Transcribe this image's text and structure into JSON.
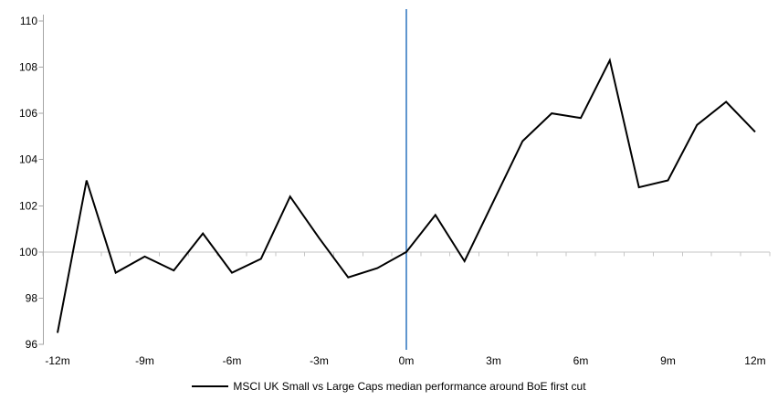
{
  "chart_data": {
    "type": "line",
    "x": [
      -12,
      -11,
      -10,
      -9,
      -8,
      -7,
      -6,
      -5,
      -4,
      -3,
      -2,
      -1,
      0,
      1,
      2,
      3,
      4,
      5,
      6,
      7,
      8,
      9,
      10,
      11,
      12
    ],
    "series": [
      {
        "name": "MSCI UK Small vs Large Caps median performance around BoE first cut",
        "values": [
          96.5,
          103.1,
          99.1,
          99.8,
          99.2,
          100.8,
          99.1,
          99.7,
          102.4,
          100.6,
          98.9,
          99.3,
          100.0,
          101.6,
          99.6,
          102.2,
          104.8,
          106.0,
          105.8,
          108.3,
          102.8,
          103.1,
          105.5,
          106.5,
          105.2
        ]
      }
    ],
    "xtick_months": [
      -12,
      -9,
      -6,
      -3,
      0,
      3,
      6,
      9,
      12
    ],
    "xtick_labels": [
      "-12m",
      "-9m",
      "-6m",
      "-3m",
      "0m",
      "3m",
      "6m",
      "9m",
      "12m"
    ],
    "yticks": [
      96,
      98,
      100,
      102,
      104,
      106,
      108,
      110
    ],
    "ylim": [
      96,
      110
    ],
    "xlim": [
      -12.5,
      12.5
    ],
    "baseline_value": 100,
    "event_line_month": 0,
    "grid": "baseline-only",
    "legend_position": "bottom",
    "colors": {
      "series": "#000000",
      "event_line": "#4e8ac8",
      "axis": "#a6a6a6",
      "baseline": "#c6c6c6",
      "text": "#000000"
    }
  },
  "legend": {
    "label": "MSCI UK Small vs Large Caps median performance around BoE first cut"
  }
}
